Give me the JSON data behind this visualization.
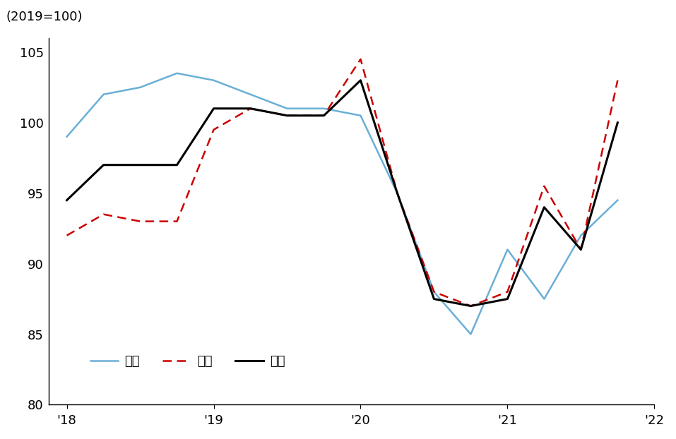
{
  "x_ticks_pos": [
    0,
    4,
    8,
    12,
    16
  ],
  "x_labels": [
    "'18",
    "'19",
    "'20",
    "'21",
    "'22"
  ],
  "urban": [
    99,
    102,
    102.5,
    103.5,
    103,
    102,
    101,
    101,
    100.5,
    95,
    88,
    85,
    91,
    87.5,
    92,
    94.5
  ],
  "rural": [
    92,
    93.5,
    93,
    93,
    99.5,
    101,
    100.5,
    100.5,
    104.5,
    95,
    88,
    87,
    88,
    95.5,
    91,
    103
  ],
  "total": [
    94.5,
    97,
    97,
    97,
    101,
    101,
    100.5,
    100.5,
    103,
    95,
    87.5,
    87,
    87.5,
    94,
    91,
    100
  ],
  "ylim": [
    80,
    106
  ],
  "yticks": [
    80,
    85,
    90,
    95,
    100,
    105
  ],
  "ylabel_text": "(2019=100)",
  "urban_color": "#6aafd6",
  "rural_color": "#cc0000",
  "total_color": "#000000",
  "background_color": "#ffffff",
  "legend_labels": [
    "도시",
    "지방",
    "전체"
  ],
  "font_size": 13
}
